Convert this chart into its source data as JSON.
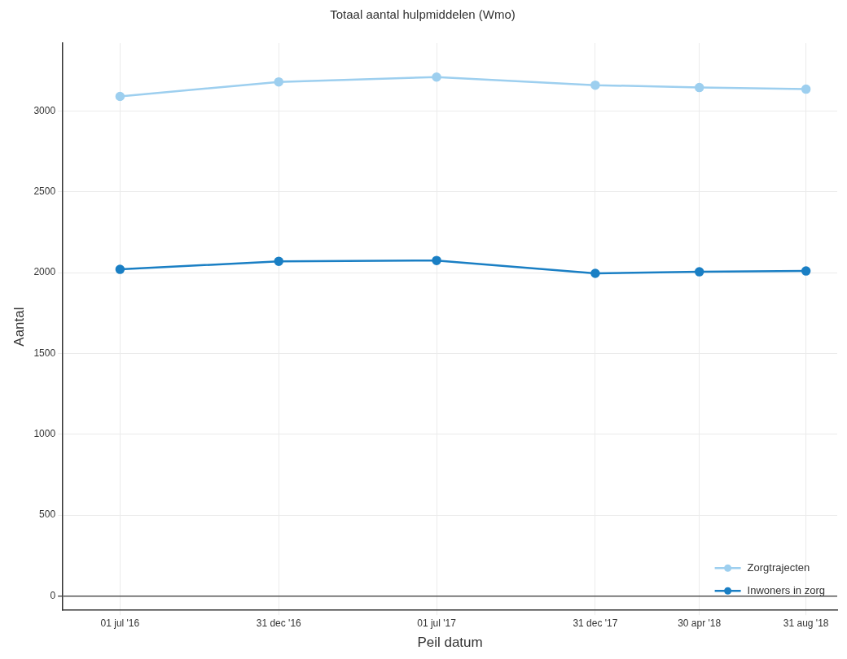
{
  "chart_data": {
    "type": "line",
    "title": "Totaal aantal hulpmiddelen (Wmo)",
    "xlabel": "Peil datum",
    "ylabel": "Aantal",
    "x": [
      "2016-07-01",
      "2016-12-31",
      "2017-07-01",
      "2017-12-31",
      "2018-04-30",
      "2018-08-31"
    ],
    "series": [
      {
        "name": "Zorgtrajecten",
        "color": "#9dcfef",
        "values": [
          3090,
          3180,
          3210,
          3160,
          3145,
          3135
        ]
      },
      {
        "name": "Inwoners in zorg",
        "color": "#1a7fc4",
        "values": [
          2020,
          2070,
          2075,
          1995,
          2005,
          2010
        ]
      }
    ],
    "xlim": [
      "2016-04-26",
      "2018-10-06"
    ],
    "xticks": [
      {
        "value": "2016-07-01",
        "label": "01 jul '16"
      },
      {
        "value": "2016-12-31",
        "label": "31 dec '16"
      },
      {
        "value": "2017-07-01",
        "label": "01 jul '17"
      },
      {
        "value": "2017-12-31",
        "label": "31 dec '17"
      },
      {
        "value": "2018-04-30",
        "label": "30 apr '18"
      },
      {
        "value": "2018-08-31",
        "label": "31 aug '18"
      }
    ],
    "ylim": [
      -90,
      3420
    ],
    "yticks": [
      0,
      500,
      1000,
      1500,
      2000,
      2500,
      3000
    ],
    "grid": true,
    "legend": "bottom right",
    "marker": "circle",
    "line_style": "solid"
  }
}
